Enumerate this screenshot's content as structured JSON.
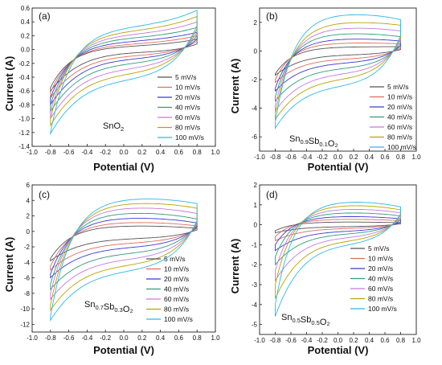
{
  "colors": {
    "5 mV/s": "#555555",
    "10 mV/s": "#e26b5a",
    "20 mV/s": "#3b3bd6",
    "40 mV/s": "#2e9c7c",
    "60 mV/s": "#c878e0",
    "80 mV/s": "#b8a400",
    "100 mV/s": "#2fb8e8"
  },
  "chart_data": [
    {
      "type": "line",
      "panel_label": "(a)",
      "material": {
        "base": "SnO",
        "sub1": "2",
        "mid": "",
        "sub2": "",
        "end": ""
      },
      "xlabel": "Potential (V)",
      "ylabel": "Current (A)",
      "xlim": [
        -1.0,
        1.0
      ],
      "ylim": [
        -1.4,
        0.6
      ],
      "xticks": [
        "-1.0",
        "-0.8",
        "-0.6",
        "-0.4",
        "-0.2",
        "0.0",
        "0.2",
        "0.4",
        "0.6",
        "0.8",
        "1.0"
      ],
      "yticks": [
        "0.6",
        "0.4",
        "0.2",
        "0.0",
        "-0.2",
        "-0.4",
        "-0.6",
        "-0.8",
        "-1.0",
        "-1.2",
        "-1.4"
      ],
      "legend_position": "right",
      "series": [
        {
          "name": "5 mV/s",
          "anodic_start": -0.55,
          "anodic_mid": 0.05,
          "anodic_end": 0.15,
          "cathodic_end": 0.08,
          "cathodic_mid": -0.05,
          "cathodic_start": -0.6
        },
        {
          "name": "10 mV/s",
          "anodic_start": -0.62,
          "anodic_mid": 0.08,
          "anodic_end": 0.2,
          "cathodic_end": 0.12,
          "cathodic_mid": -0.1,
          "cathodic_start": -0.7
        },
        {
          "name": "20 mV/s",
          "anodic_start": -0.7,
          "anodic_mid": 0.12,
          "anodic_end": 0.25,
          "cathodic_end": 0.15,
          "cathodic_mid": -0.15,
          "cathodic_start": -0.8
        },
        {
          "name": "40 mV/s",
          "anodic_start": -0.8,
          "anodic_mid": 0.17,
          "anodic_end": 0.32,
          "cathodic_end": 0.2,
          "cathodic_mid": -0.22,
          "cathodic_start": -0.9
        },
        {
          "name": "60 mV/s",
          "anodic_start": -0.9,
          "anodic_mid": 0.22,
          "anodic_end": 0.4,
          "cathodic_end": 0.25,
          "cathodic_mid": -0.3,
          "cathodic_start": -1.0
        },
        {
          "name": "80 mV/s",
          "anodic_start": -1.0,
          "anodic_mid": 0.27,
          "anodic_end": 0.48,
          "cathodic_end": 0.3,
          "cathodic_mid": -0.38,
          "cathodic_start": -1.1
        },
        {
          "name": "100 mV/s",
          "anodic_start": -1.2,
          "anodic_mid": 0.33,
          "anodic_end": 0.57,
          "cathodic_end": 0.35,
          "cathodic_mid": -0.47,
          "cathodic_start": -1.22
        }
      ]
    },
    {
      "type": "line",
      "panel_label": "(b)",
      "material": {
        "base": "Sn",
        "sub1": "0.9",
        "mid": "Sb",
        "sub2": "0.1",
        "end": "O₂"
      },
      "xlabel": "Potential (V)",
      "ylabel": "Current (A)",
      "xlim": [
        -1.0,
        1.0
      ],
      "ylim": [
        -7,
        3
      ],
      "xticks": [
        "-1.0",
        "-0.8",
        "-0.6",
        "-0.4",
        "-0.2",
        "0.0",
        "0.2",
        "0.4",
        "0.6",
        "0.8",
        "1.0"
      ],
      "yticks": [
        "2",
        "0",
        "-2",
        "-4",
        "-6"
      ],
      "legend_position": "right",
      "series": [
        {
          "name": "5 mV/s",
          "anodic_start": -1.6,
          "anodic_mid": 0.3,
          "anodic_end": 0.3,
          "cathodic_end": 0.1,
          "cathodic_mid": -0.3,
          "cathodic_start": -1.7
        },
        {
          "name": "10 mV/s",
          "anodic_start": -2.0,
          "anodic_mid": 0.6,
          "anodic_end": 0.5,
          "cathodic_end": 0.2,
          "cathodic_mid": -0.6,
          "cathodic_start": -2.2
        },
        {
          "name": "20 mV/s",
          "anodic_start": -2.6,
          "anodic_mid": 0.9,
          "anodic_end": 0.7,
          "cathodic_end": 0.35,
          "cathodic_mid": -0.9,
          "cathodic_start": -2.8
        },
        {
          "name": "40 mV/s",
          "anodic_start": -3.2,
          "anodic_mid": 1.3,
          "anodic_end": 1.0,
          "cathodic_end": 0.5,
          "cathodic_mid": -1.3,
          "cathodic_start": -3.5
        },
        {
          "name": "60 mV/s",
          "anodic_start": -3.8,
          "anodic_mid": 1.7,
          "anodic_end": 1.4,
          "cathodic_end": 0.7,
          "cathodic_mid": -1.7,
          "cathodic_start": -4.2
        },
        {
          "name": "80 mV/s",
          "anodic_start": -4.4,
          "anodic_mid": 2.1,
          "anodic_end": 1.8,
          "cathodic_end": 0.9,
          "cathodic_mid": -2.1,
          "cathodic_start": -4.8
        },
        {
          "name": "100 mV/s",
          "anodic_start": -5.0,
          "anodic_mid": 2.7,
          "anodic_end": 2.2,
          "cathodic_end": 1.1,
          "cathodic_mid": -2.6,
          "cathodic_start": -5.4
        }
      ]
    },
    {
      "type": "line",
      "panel_label": "(c)",
      "material": {
        "base": "Sn",
        "sub1": "0.7",
        "mid": "Sb",
        "sub2": "0.3",
        "end": "O₂"
      },
      "xlabel": "Potential (V)",
      "ylabel": "Current (A)",
      "xlim": [
        -1.0,
        1.0
      ],
      "ylim": [
        -13,
        6
      ],
      "xticks": [
        "-1.0",
        "-0.8",
        "-0.6",
        "-0.4",
        "-0.2",
        "0.0",
        "0.2",
        "0.4",
        "0.6",
        "0.8",
        "1.0"
      ],
      "yticks": [
        "6",
        "4",
        "2",
        "0",
        "-2",
        "-4",
        "-6",
        "-8",
        "-10",
        "-12"
      ],
      "legend_position": "right",
      "series": [
        {
          "name": "5 mV/s",
          "anodic_start": -3.5,
          "anodic_mid": 0.8,
          "anodic_end": 0.4,
          "cathodic_end": 0.2,
          "cathodic_mid": -1.0,
          "cathodic_start": -3.8
        },
        {
          "name": "10 mV/s",
          "anodic_start": -4.5,
          "anodic_mid": 1.3,
          "anodic_end": 0.7,
          "cathodic_end": 0.4,
          "cathodic_mid": -1.6,
          "cathodic_start": -5.0
        },
        {
          "name": "20 mV/s",
          "anodic_start": -5.5,
          "anodic_mid": 1.9,
          "anodic_end": 1.1,
          "cathodic_end": 0.6,
          "cathodic_mid": -2.2,
          "cathodic_start": -6.0
        },
        {
          "name": "40 mV/s",
          "anodic_start": -6.8,
          "anodic_mid": 2.6,
          "anodic_end": 1.6,
          "cathodic_end": 0.8,
          "cathodic_mid": -3.0,
          "cathodic_start": -7.5
        },
        {
          "name": "60 mV/s",
          "anodic_start": -8.0,
          "anodic_mid": 3.3,
          "anodic_end": 2.3,
          "cathodic_end": 1.0,
          "cathodic_mid": -3.8,
          "cathodic_start": -8.8
        },
        {
          "name": "80 mV/s",
          "anodic_start": -9.5,
          "anodic_mid": 3.9,
          "anodic_end": 3.0,
          "cathodic_end": 1.2,
          "cathodic_mid": -4.6,
          "cathodic_start": -10.2
        },
        {
          "name": "100 mV/s",
          "anodic_start": -11.0,
          "anodic_mid": 4.5,
          "anodic_end": 3.6,
          "cathodic_end": 1.4,
          "cathodic_mid": -5.4,
          "cathodic_start": -11.5
        }
      ]
    },
    {
      "type": "line",
      "panel_label": "(d)",
      "material": {
        "base": "Sn",
        "sub1": "0.5",
        "mid": "Sb",
        "sub2": "0.5",
        "end": "O₂"
      },
      "xlabel": "Potential (V)",
      "ylabel": "Current (A)",
      "xlim": [
        -1.0,
        1.0
      ],
      "ylim": [
        -5.5,
        2
      ],
      "xticks": [
        "-1.0",
        "-0.8",
        "-0.6",
        "-0.4",
        "-0.2",
        "0.0",
        "0.2",
        "0.4",
        "0.6",
        "0.8",
        "1.0"
      ],
      "yticks": [
        "2",
        "1",
        "0",
        "-1",
        "-2",
        "-3",
        "-4",
        "-5"
      ],
      "legend_position": "right",
      "series": [
        {
          "name": "5 mV/s",
          "anodic_start": -0.3,
          "anodic_mid": 0.15,
          "anodic_end": 0.1,
          "cathodic_end": 0.05,
          "cathodic_mid": -0.1,
          "cathodic_start": -0.4
        },
        {
          "name": "10 mV/s",
          "anodic_start": -0.6,
          "anodic_mid": 0.3,
          "anodic_end": 0.2,
          "cathodic_end": 0.1,
          "cathodic_mid": -0.2,
          "cathodic_start": -0.8
        },
        {
          "name": "20 mV/s",
          "anodic_start": -1.0,
          "anodic_mid": 0.45,
          "anodic_end": 0.3,
          "cathodic_end": 0.15,
          "cathodic_mid": -0.35,
          "cathodic_start": -1.3
        },
        {
          "name": "40 mV/s",
          "anodic_start": -1.6,
          "anodic_mid": 0.65,
          "anodic_end": 0.45,
          "cathodic_end": 0.25,
          "cathodic_mid": -0.5,
          "cathodic_start": -2.0
        },
        {
          "name": "60 mV/s",
          "anodic_start": -2.3,
          "anodic_mid": 0.85,
          "anodic_end": 0.6,
          "cathodic_end": 0.35,
          "cathodic_mid": -0.7,
          "cathodic_start": -2.8
        },
        {
          "name": "80 mV/s",
          "anodic_start": -3.0,
          "anodic_mid": 1.05,
          "anodic_end": 0.75,
          "cathodic_end": 0.45,
          "cathodic_mid": -0.9,
          "cathodic_start": -3.7
        },
        {
          "name": "100 mV/s",
          "anodic_start": -4.0,
          "anodic_mid": 1.25,
          "anodic_end": 0.9,
          "cathodic_end": 0.55,
          "cathodic_mid": -1.1,
          "cathodic_start": -4.6
        }
      ]
    }
  ]
}
